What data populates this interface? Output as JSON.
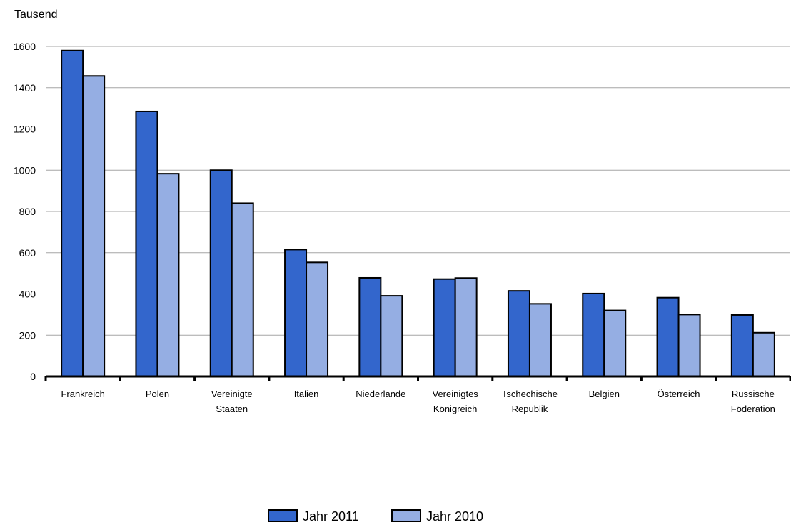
{
  "chart_data": {
    "type": "bar",
    "title": "",
    "ylabel": "Tausend",
    "xlabel": "",
    "ylim": [
      0,
      1600
    ],
    "yticks": [
      0,
      200,
      400,
      600,
      800,
      1000,
      1200,
      1400,
      1600
    ],
    "grid": true,
    "legend_position": "bottom-center",
    "categories": [
      [
        "Frankreich"
      ],
      [
        "Polen"
      ],
      [
        "Vereinigte",
        "Staaten"
      ],
      [
        "Italien"
      ],
      [
        "Niederlande"
      ],
      [
        "Vereinigtes",
        "Königreich"
      ],
      [
        "Tschechische",
        "Republik"
      ],
      [
        "Belgien"
      ],
      [
        "Österreich"
      ],
      [
        "Russische",
        "Föderation"
      ]
    ],
    "series": [
      {
        "name": "Jahr 2011",
        "color": "#3366cc",
        "values": [
          1580,
          1285,
          1000,
          615,
          478,
          472,
          415,
          402,
          382,
          298
        ]
      },
      {
        "name": "Jahr 2010",
        "color": "#95aee3",
        "values": [
          1457,
          983,
          840,
          553,
          391,
          477,
          352,
          320,
          300,
          212
        ]
      }
    ]
  }
}
